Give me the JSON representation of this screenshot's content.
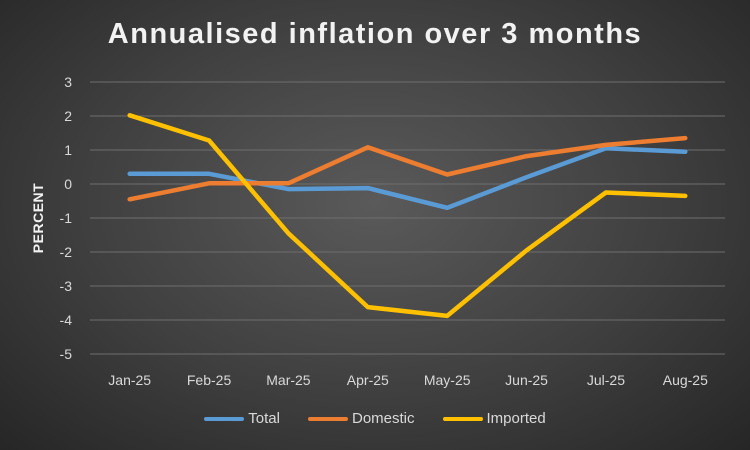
{
  "chart_data": {
    "type": "line",
    "title": "Annualised inflation over 3 months",
    "xlabel": "",
    "ylabel": "PERCENT",
    "categories": [
      "Jan-25",
      "Feb-25",
      "Mar-25",
      "Apr-25",
      "May-25",
      "Jun-25",
      "Jul-25",
      "Aug-25"
    ],
    "ylim": [
      -5,
      3
    ],
    "yticks": [
      3,
      2,
      1,
      0,
      -1,
      -2,
      -3,
      -4,
      -5
    ],
    "grid": true,
    "legend_position": "bottom",
    "series": [
      {
        "name": "Total",
        "color": "#5b9bd5",
        "values": [
          0.3,
          0.3,
          -0.15,
          -0.12,
          -0.7,
          0.2,
          1.05,
          0.95
        ]
      },
      {
        "name": "Domestic",
        "color": "#ed7d31",
        "values": [
          -0.45,
          0.02,
          0.02,
          1.08,
          0.28,
          0.82,
          1.15,
          1.35
        ]
      },
      {
        "name": "Imported",
        "color": "#ffc000",
        "values": [
          2.02,
          1.28,
          -1.45,
          -3.62,
          -3.88,
          -1.95,
          -0.25,
          -0.35
        ]
      }
    ]
  }
}
